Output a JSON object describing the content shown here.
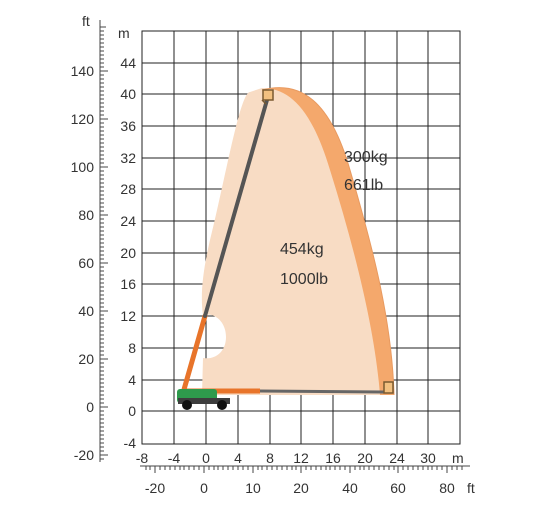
{
  "units": {
    "left_outer": "ft",
    "left_inner": "m",
    "bottom_inner": "m",
    "bottom_outer": "ft"
  },
  "y_m_ticks": [
    "44",
    "40",
    "36",
    "32",
    "28",
    "24",
    "20",
    "16",
    "12",
    "8",
    "4",
    "0",
    "-4"
  ],
  "y_ft_ticks": [
    "140",
    "120",
    "100",
    "80",
    "60",
    "40",
    "20",
    "0",
    "-20"
  ],
  "x_m_ticks": [
    "-8",
    "-4",
    "0",
    "4",
    "8",
    "12",
    "16",
    "20",
    "24",
    "30"
  ],
  "x_ft_ticks": [
    "-20",
    "0",
    "10",
    "20",
    "40",
    "60",
    "80"
  ],
  "load_zones": [
    {
      "kg": "454kg",
      "lb": "1000lb",
      "color": "#f8dcc4"
    },
    {
      "kg": "300kg",
      "lb": "661lb",
      "color": "#f4a86c"
    }
  ],
  "colors": {
    "boom_lower": "#e8742a",
    "boom_upper": "#555555",
    "chassis": "#2e9a4c",
    "grid": "#222222"
  }
}
